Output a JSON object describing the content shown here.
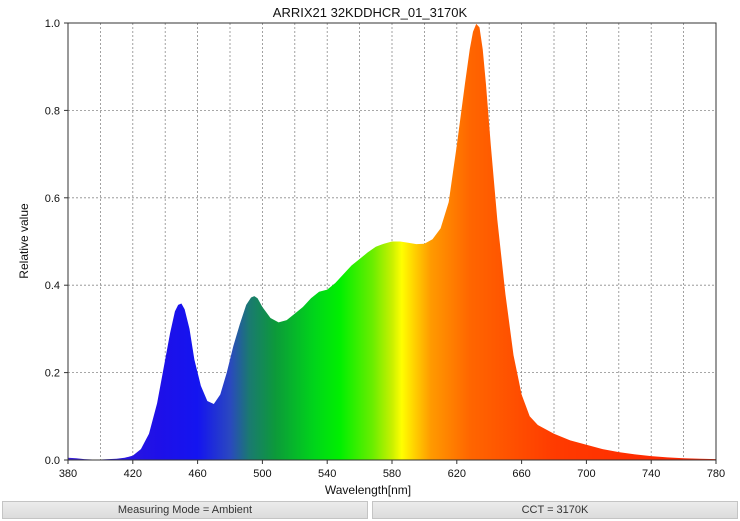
{
  "chart_data": {
    "type": "area",
    "title": "ARRIX21 32KDDHCR_01_3170K",
    "xlabel": "Wavelength[nm]",
    "ylabel": "Relative value",
    "xlim": [
      380,
      780
    ],
    "ylim": [
      0,
      1.0
    ],
    "xticks": [
      "380",
      "420",
      "460",
      "500",
      "540",
      "580",
      "620",
      "660",
      "700",
      "740",
      "780"
    ],
    "yticks": [
      "0.0",
      "0.2",
      "0.4",
      "0.6",
      "0.8",
      "1.0"
    ],
    "grid": true,
    "x": [
      380,
      385,
      390,
      395,
      400,
      405,
      410,
      415,
      420,
      425,
      430,
      435,
      440,
      443,
      446,
      448,
      450,
      452,
      455,
      458,
      462,
      466,
      470,
      474,
      478,
      482,
      486,
      490,
      493,
      495,
      497,
      500,
      505,
      510,
      515,
      520,
      525,
      530,
      535,
      540,
      545,
      550,
      555,
      560,
      565,
      570,
      575,
      580,
      585,
      590,
      595,
      600,
      605,
      610,
      615,
      620,
      625,
      628,
      630,
      632,
      634,
      636,
      638,
      641,
      645,
      650,
      655,
      660,
      665,
      670,
      675,
      680,
      690,
      700,
      710,
      720,
      730,
      740,
      750,
      760,
      770,
      780
    ],
    "y": [
      0.005,
      0.004,
      0.002,
      0.001,
      0.001,
      0.002,
      0.003,
      0.005,
      0.01,
      0.025,
      0.06,
      0.13,
      0.23,
      0.29,
      0.34,
      0.355,
      0.358,
      0.345,
      0.3,
      0.23,
      0.17,
      0.135,
      0.128,
      0.15,
      0.2,
      0.26,
      0.31,
      0.355,
      0.372,
      0.375,
      0.37,
      0.35,
      0.325,
      0.315,
      0.32,
      0.335,
      0.35,
      0.37,
      0.385,
      0.39,
      0.405,
      0.425,
      0.445,
      0.46,
      0.475,
      0.488,
      0.495,
      0.5,
      0.5,
      0.497,
      0.494,
      0.495,
      0.505,
      0.53,
      0.59,
      0.72,
      0.86,
      0.94,
      0.98,
      0.998,
      0.99,
      0.94,
      0.86,
      0.72,
      0.55,
      0.38,
      0.24,
      0.15,
      0.1,
      0.08,
      0.07,
      0.06,
      0.045,
      0.035,
      0.025,
      0.018,
      0.013,
      0.009,
      0.006,
      0.004,
      0.003,
      0.002
    ]
  },
  "status": {
    "measuring_mode": "Measuring Mode = Ambient",
    "cct": "CCT = 3170K"
  }
}
